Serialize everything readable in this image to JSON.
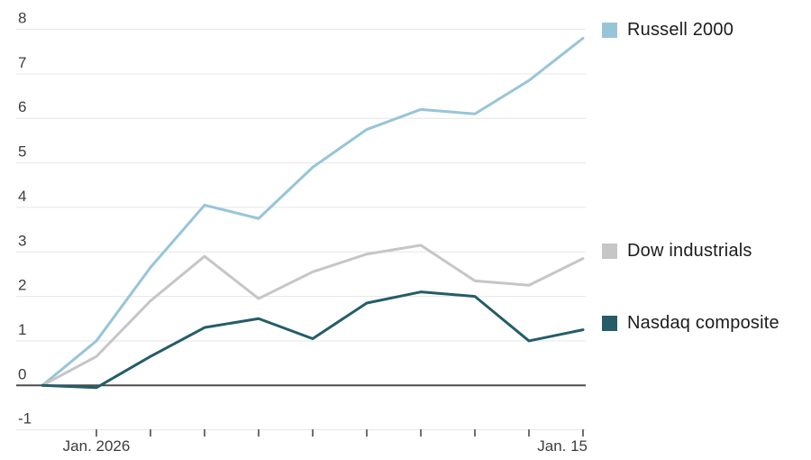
{
  "chart_data": {
    "type": "line",
    "title": "",
    "xlabel": "",
    "ylabel": "",
    "ylim": [
      -1,
      8
    ],
    "y_ticks": [
      -1,
      0,
      1,
      2,
      3,
      4,
      5,
      6,
      7,
      8
    ],
    "baseline": 0,
    "grid": true,
    "legend_position": "right",
    "x_point_count": 11,
    "x_labels": [
      {
        "index": 1,
        "label": "Jan. 2026",
        "align": "center"
      },
      {
        "index": 10,
        "label": "Jan. 15",
        "align": "end"
      }
    ],
    "series": [
      {
        "name": "Russell 2000",
        "color": "#97c5d8",
        "values": [
          0,
          1.0,
          2.65,
          4.05,
          3.75,
          4.9,
          5.75,
          6.2,
          6.1,
          6.85,
          7.8
        ]
      },
      {
        "name": "Dow industrials",
        "color": "#c6c6c6",
        "values": [
          0,
          0.65,
          1.9,
          2.9,
          1.95,
          2.55,
          2.95,
          3.15,
          2.35,
          2.25,
          2.85
        ]
      },
      {
        "name": "Nasdaq composite",
        "color": "#245d68",
        "values": [
          0,
          -0.05,
          0.65,
          1.3,
          1.5,
          1.05,
          1.85,
          2.1,
          2.0,
          1.0,
          1.25
        ]
      }
    ]
  },
  "colors": {
    "background": "#ffffff",
    "gridline": "#e6e6e6",
    "zero_line": "#4d4d4d",
    "axis_text": "#3d3d3d",
    "legend_text": "#1c1c1c"
  }
}
